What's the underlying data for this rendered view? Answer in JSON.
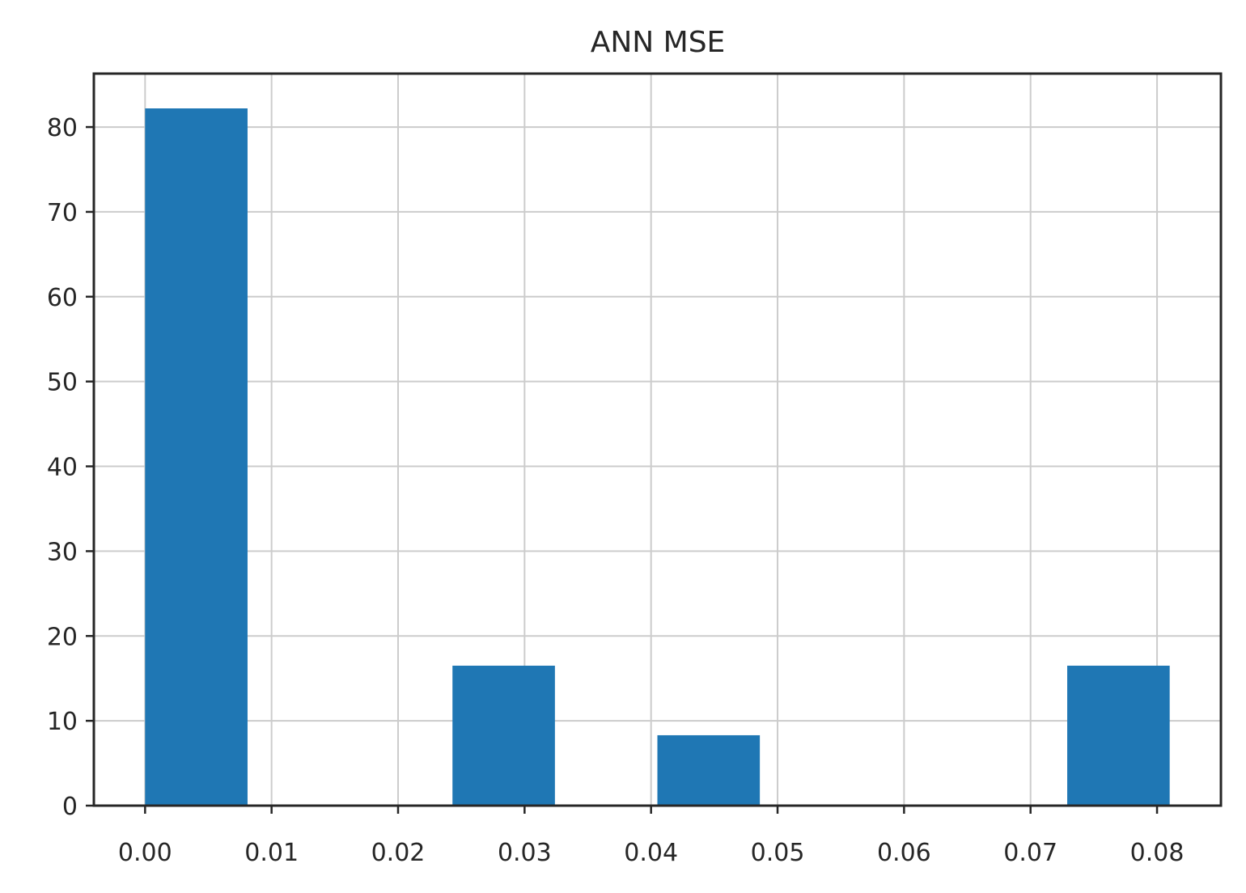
{
  "chart_data": {
    "type": "bar",
    "title": "ANN MSE",
    "xlabel": "",
    "ylabel": "",
    "bins": [
      {
        "x0": 0.0,
        "x1": 0.0081,
        "count": 82.2
      },
      {
        "x0": 0.0081,
        "x1": 0.0162,
        "count": 0
      },
      {
        "x0": 0.0162,
        "x1": 0.0243,
        "count": 0
      },
      {
        "x0": 0.0243,
        "x1": 0.0324,
        "count": 16.5
      },
      {
        "x0": 0.0324,
        "x1": 0.0405,
        "count": 0
      },
      {
        "x0": 0.0405,
        "x1": 0.0486,
        "count": 8.3
      },
      {
        "x0": 0.0486,
        "x1": 0.0567,
        "count": 0
      },
      {
        "x0": 0.0567,
        "x1": 0.0648,
        "count": 0
      },
      {
        "x0": 0.0648,
        "x1": 0.0729,
        "count": 0
      },
      {
        "x0": 0.0729,
        "x1": 0.081,
        "count": 16.5
      }
    ],
    "xlim": [
      -0.00405,
      0.08505
    ],
    "ylim": [
      0,
      86.3
    ],
    "xticks": [
      "0.00",
      "0.01",
      "0.02",
      "0.03",
      "0.04",
      "0.05",
      "0.06",
      "0.07",
      "0.08"
    ],
    "yticks": [
      "0",
      "10",
      "20",
      "30",
      "40",
      "50",
      "60",
      "70",
      "80"
    ],
    "grid": true,
    "colors": {
      "bar": "#1f77b4",
      "grid": "#cccccc",
      "axis": "#262626"
    }
  }
}
